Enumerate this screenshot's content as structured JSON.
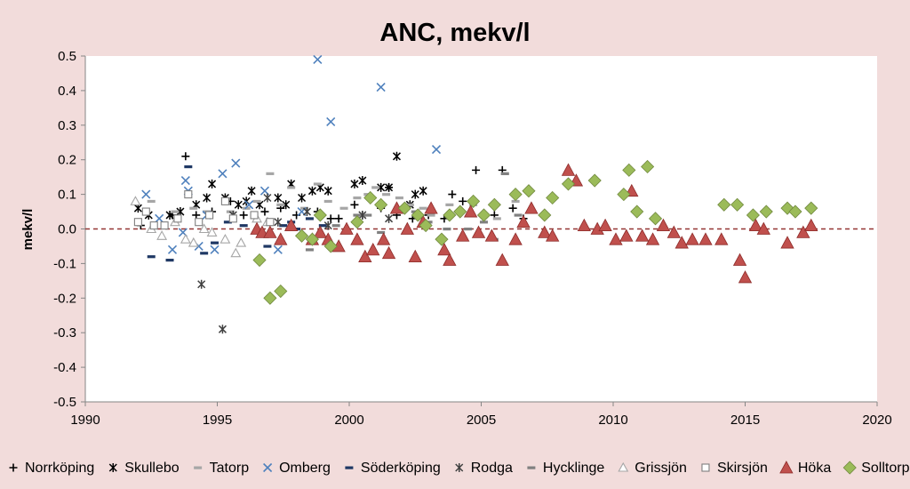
{
  "chart_data": {
    "type": "scatter",
    "title": "ANC, mekv/l",
    "xlabel": "",
    "ylabel": "mekv/l",
    "xlim": [
      1990,
      2020
    ],
    "ylim": [
      -0.5,
      0.5
    ],
    "x_ticks": [
      1990,
      1995,
      2000,
      2005,
      2010,
      2015,
      2020
    ],
    "y_ticks": [
      -0.5,
      -0.4,
      -0.3,
      -0.2,
      -0.1,
      0.0,
      0.1,
      0.2,
      0.3,
      0.4,
      0.5
    ],
    "x_tick_labels": [
      "1990",
      "1995",
      "2000",
      "2005",
      "2010",
      "2015",
      "2020"
    ],
    "y_tick_labels": [
      "-0.5",
      "-0.4",
      "-0.3",
      "-0.2",
      "-0.1",
      "0.0",
      "0.1",
      "0.2",
      "0.3",
      "0.4",
      "0.5"
    ],
    "reference_line": {
      "y": 0,
      "color": "#943634",
      "style": "dashed"
    },
    "grid": false,
    "legend_position": "bottom",
    "series": [
      {
        "name": "Norrköping",
        "marker": "plus",
        "color": "#000000",
        "points": [
          [
            1992.1,
            0.01
          ],
          [
            1993.3,
            0.04
          ],
          [
            1993.8,
            0.21
          ],
          [
            1994.2,
            0.04
          ],
          [
            1994.8,
            0.05
          ],
          [
            1995.5,
            0.08
          ],
          [
            1996.0,
            0.04
          ],
          [
            1996.8,
            0.05
          ],
          [
            1997.4,
            0.06
          ],
          [
            1998.0,
            0.04
          ],
          [
            1998.8,
            0.05
          ],
          [
            1999.3,
            0.03
          ],
          [
            1999.6,
            0.03
          ],
          [
            2000.2,
            0.07
          ],
          [
            2000.5,
            0.04
          ],
          [
            2001.2,
            0.06
          ],
          [
            2001.8,
            0.04
          ],
          [
            2002.4,
            0.03
          ],
          [
            2003.0,
            0.04
          ],
          [
            2003.6,
            0.03
          ],
          [
            2003.9,
            0.1
          ],
          [
            2004.3,
            0.08
          ],
          [
            2004.8,
            0.17
          ],
          [
            2005.5,
            0.04
          ],
          [
            2005.8,
            0.17
          ],
          [
            2006.2,
            0.06
          ],
          [
            2006.6,
            0.03
          ],
          [
            2001.5,
            0.12
          ]
        ]
      },
      {
        "name": "Skullebo",
        "marker": "star",
        "color": "#000000",
        "points": [
          [
            1992.0,
            0.06
          ],
          [
            1992.4,
            0.04
          ],
          [
            1993.2,
            0.04
          ],
          [
            1993.6,
            0.05
          ],
          [
            1994.2,
            0.07
          ],
          [
            1994.6,
            0.09
          ],
          [
            1994.8,
            0.13
          ],
          [
            1995.3,
            0.09
          ],
          [
            1995.8,
            0.07
          ],
          [
            1996.3,
            0.11
          ],
          [
            1996.6,
            0.07
          ],
          [
            1997.3,
            0.09
          ],
          [
            1997.8,
            0.13
          ],
          [
            1998.2,
            0.09
          ],
          [
            1998.6,
            0.11
          ],
          [
            1998.9,
            0.12
          ],
          [
            1999.2,
            0.11
          ],
          [
            2000.2,
            0.13
          ],
          [
            2000.5,
            0.14
          ],
          [
            2001.2,
            0.12
          ],
          [
            2001.5,
            0.12
          ],
          [
            2001.8,
            0.21
          ],
          [
            2002.3,
            0.07
          ],
          [
            2002.5,
            0.1
          ],
          [
            2002.8,
            0.11
          ],
          [
            1997.6,
            0.07
          ],
          [
            1996.1,
            0.08
          ]
        ]
      },
      {
        "name": "Tatorp",
        "marker": "dash",
        "color": "#a6a6a6",
        "points": [
          [
            1992.5,
            0.08
          ],
          [
            1993.4,
            0.05
          ],
          [
            1994.1,
            0.06
          ],
          [
            1994.6,
            0.05
          ],
          [
            1995.5,
            0.05
          ],
          [
            1996.1,
            0.06
          ],
          [
            1996.5,
            0.08
          ],
          [
            1997.0,
            0.16
          ],
          [
            1997.4,
            0.07
          ],
          [
            1997.8,
            0.12
          ],
          [
            1998.3,
            0.06
          ],
          [
            1998.8,
            0.13
          ],
          [
            1999.2,
            0.08
          ],
          [
            1999.8,
            0.06
          ],
          [
            2000.3,
            0.09
          ],
          [
            2000.7,
            0.1
          ],
          [
            2001.0,
            0.12
          ],
          [
            2001.4,
            0.1
          ],
          [
            2001.9,
            0.09
          ],
          [
            2002.3,
            0.07
          ],
          [
            2002.8,
            0.06
          ],
          [
            2003.1,
            0.04
          ],
          [
            2003.8,
            0.07
          ],
          [
            2004.2,
            0.05
          ],
          [
            2004.7,
            0.07
          ],
          [
            2005.1,
            0.04
          ],
          [
            2005.6,
            0.03
          ],
          [
            2005.9,
            0.16
          ],
          [
            2006.3,
            0.08
          ]
        ]
      },
      {
        "name": "Omberg",
        "marker": "x",
        "color": "#4f81bd",
        "points": [
          [
            1992.3,
            0.1
          ],
          [
            1992.8,
            0.03
          ],
          [
            1993.3,
            -0.06
          ],
          [
            1993.7,
            -0.01
          ],
          [
            1993.8,
            0.14
          ],
          [
            1993.9,
            0.11
          ],
          [
            1994.3,
            -0.05
          ],
          [
            1994.6,
            0.04
          ],
          [
            1994.9,
            -0.06
          ],
          [
            1995.2,
            0.16
          ],
          [
            1995.7,
            0.19
          ],
          [
            1996.2,
            0.07
          ],
          [
            1996.8,
            0.11
          ],
          [
            1997.3,
            -0.06
          ],
          [
            1998.2,
            0.05
          ],
          [
            1998.8,
            0.49
          ],
          [
            1999.3,
            0.31
          ],
          [
            2001.2,
            0.41
          ],
          [
            2003.3,
            0.23
          ]
        ]
      },
      {
        "name": "Söderköping",
        "marker": "dash",
        "color": "#1f3864",
        "points": [
          [
            1992.5,
            -0.08
          ],
          [
            1993.2,
            -0.09
          ],
          [
            1993.9,
            0.18
          ],
          [
            1994.5,
            -0.07
          ],
          [
            1994.9,
            -0.04
          ],
          [
            1995.4,
            0.02
          ],
          [
            1996.0,
            0.01
          ],
          [
            1996.9,
            -0.05
          ],
          [
            1997.5,
            0.01
          ],
          [
            1997.8,
            0.02
          ],
          [
            1998.0,
            0.0
          ],
          [
            1998.5,
            0.03
          ],
          [
            1999.0,
            0.01
          ]
        ]
      },
      {
        "name": "Rodga",
        "marker": "star",
        "color": "#404040",
        "points": [
          [
            1994.4,
            -0.16
          ],
          [
            1995.2,
            -0.29
          ],
          [
            1995.6,
            0.04
          ],
          [
            1996.9,
            0.09
          ],
          [
            1997.3,
            0.02
          ],
          [
            1998.4,
            0.05
          ],
          [
            1999.2,
            0.01
          ],
          [
            2000.5,
            0.04
          ],
          [
            2001.5,
            0.03
          ]
        ]
      },
      {
        "name": "Hycklinge",
        "marker": "dash",
        "color": "#808080",
        "points": [
          [
            1998.5,
            -0.06
          ],
          [
            1998.9,
            0.04
          ],
          [
            1999.5,
            0.01
          ],
          [
            2000.3,
            0.04
          ],
          [
            2000.7,
            0.04
          ],
          [
            2001.2,
            -0.01
          ],
          [
            2001.8,
            0.05
          ],
          [
            2002.5,
            0.05
          ],
          [
            2003.0,
            0.02
          ],
          [
            2003.7,
            0.0
          ],
          [
            2004.5,
            0.0
          ],
          [
            2005.1,
            0.02
          ],
          [
            2005.5,
            -0.03
          ],
          [
            2005.9,
            0.16
          ],
          [
            2006.4,
            0.04
          ]
        ]
      },
      {
        "name": "Grissjön",
        "marker": "triangle-open",
        "color": "#a6a6a6",
        "points": [
          [
            1991.9,
            0.08
          ],
          [
            1992.5,
            0.0
          ],
          [
            1992.9,
            -0.02
          ],
          [
            1993.4,
            0.02
          ],
          [
            1993.8,
            -0.03
          ],
          [
            1994.1,
            -0.04
          ],
          [
            1994.5,
            0.0
          ],
          [
            1994.8,
            -0.01
          ],
          [
            1995.3,
            -0.03
          ],
          [
            1995.7,
            -0.07
          ],
          [
            1995.9,
            -0.04
          ],
          [
            1996.5,
            0.03
          ],
          [
            1996.9,
            0.02
          ]
        ]
      },
      {
        "name": "Skirsjön",
        "marker": "square-open",
        "color": "#7f7f7f",
        "points": [
          [
            1992.0,
            0.02
          ],
          [
            1992.3,
            0.05
          ],
          [
            1992.6,
            0.01
          ],
          [
            1993.0,
            0.01
          ],
          [
            1993.5,
            0.03
          ],
          [
            1993.9,
            0.1
          ],
          [
            1994.3,
            0.02
          ],
          [
            1994.7,
            0.04
          ],
          [
            1995.3,
            0.08
          ],
          [
            1995.6,
            0.03
          ],
          [
            1996.4,
            0.04
          ],
          [
            1997.0,
            0.02
          ]
        ]
      },
      {
        "name": "Höka",
        "marker": "triangle-filled",
        "color": "#c0504d",
        "points": [
          [
            1996.5,
            0.0
          ],
          [
            1996.7,
            -0.01
          ],
          [
            1997.0,
            -0.01
          ],
          [
            1997.4,
            -0.03
          ],
          [
            1997.8,
            0.01
          ],
          [
            1998.6,
            -0.03
          ],
          [
            1998.9,
            -0.01
          ],
          [
            1999.2,
            -0.03
          ],
          [
            1999.6,
            -0.05
          ],
          [
            1999.9,
            0.0
          ],
          [
            2000.3,
            -0.03
          ],
          [
            2000.6,
            -0.08
          ],
          [
            2000.9,
            -0.06
          ],
          [
            2001.3,
            -0.03
          ],
          [
            2001.5,
            -0.07
          ],
          [
            2001.8,
            0.06
          ],
          [
            2002.2,
            0.0
          ],
          [
            2002.5,
            -0.08
          ],
          [
            2002.8,
            0.02
          ],
          [
            2003.1,
            0.06
          ],
          [
            2003.6,
            -0.06
          ],
          [
            2003.8,
            -0.09
          ],
          [
            2004.3,
            -0.02
          ],
          [
            2004.6,
            0.05
          ],
          [
            2004.9,
            -0.01
          ],
          [
            2005.4,
            -0.02
          ],
          [
            2005.8,
            -0.09
          ],
          [
            2006.3,
            -0.03
          ],
          [
            2006.6,
            0.02
          ],
          [
            2006.9,
            0.06
          ],
          [
            2007.4,
            -0.01
          ],
          [
            2007.7,
            -0.02
          ],
          [
            2008.3,
            0.17
          ],
          [
            2008.6,
            0.14
          ],
          [
            2008.9,
            0.01
          ],
          [
            2009.4,
            0.0
          ],
          [
            2009.7,
            0.01
          ],
          [
            2010.1,
            -0.03
          ],
          [
            2010.5,
            -0.02
          ],
          [
            2010.7,
            0.11
          ],
          [
            2011.1,
            -0.02
          ],
          [
            2011.5,
            -0.03
          ],
          [
            2011.9,
            0.01
          ],
          [
            2012.3,
            -0.01
          ],
          [
            2012.6,
            -0.04
          ],
          [
            2013.0,
            -0.03
          ],
          [
            2013.5,
            -0.03
          ],
          [
            2014.1,
            -0.03
          ],
          [
            2014.8,
            -0.09
          ],
          [
            2015.0,
            -0.14
          ],
          [
            2015.4,
            0.01
          ],
          [
            2015.7,
            0.0
          ],
          [
            2016.6,
            -0.04
          ],
          [
            2017.2,
            -0.01
          ],
          [
            2017.5,
            0.01
          ]
        ]
      },
      {
        "name": "Solltorp",
        "marker": "diamond-filled",
        "color": "#9bbb59",
        "points": [
          [
            1996.6,
            -0.09
          ],
          [
            1997.0,
            -0.2
          ],
          [
            1997.4,
            -0.18
          ],
          [
            1998.2,
            -0.02
          ],
          [
            1998.6,
            -0.03
          ],
          [
            1998.9,
            0.04
          ],
          [
            1999.3,
            -0.05
          ],
          [
            2000.3,
            0.02
          ],
          [
            2000.8,
            0.09
          ],
          [
            2001.2,
            0.07
          ],
          [
            2002.1,
            0.06
          ],
          [
            2002.6,
            0.04
          ],
          [
            2002.9,
            0.01
          ],
          [
            2003.5,
            -0.03
          ],
          [
            2003.8,
            0.04
          ],
          [
            2004.2,
            0.05
          ],
          [
            2004.7,
            0.08
          ],
          [
            2005.1,
            0.04
          ],
          [
            2005.5,
            0.07
          ],
          [
            2006.3,
            0.1
          ],
          [
            2006.8,
            0.11
          ],
          [
            2007.4,
            0.04
          ],
          [
            2007.7,
            0.09
          ],
          [
            2008.3,
            0.13
          ],
          [
            2009.3,
            0.14
          ],
          [
            2010.4,
            0.1
          ],
          [
            2010.6,
            0.17
          ],
          [
            2010.9,
            0.05
          ],
          [
            2011.3,
            0.18
          ],
          [
            2011.6,
            0.03
          ],
          [
            2014.2,
            0.07
          ],
          [
            2014.7,
            0.07
          ],
          [
            2015.3,
            0.04
          ],
          [
            2015.8,
            0.05
          ],
          [
            2016.6,
            0.06
          ],
          [
            2016.9,
            0.05
          ],
          [
            2017.5,
            0.06
          ]
        ]
      }
    ]
  }
}
